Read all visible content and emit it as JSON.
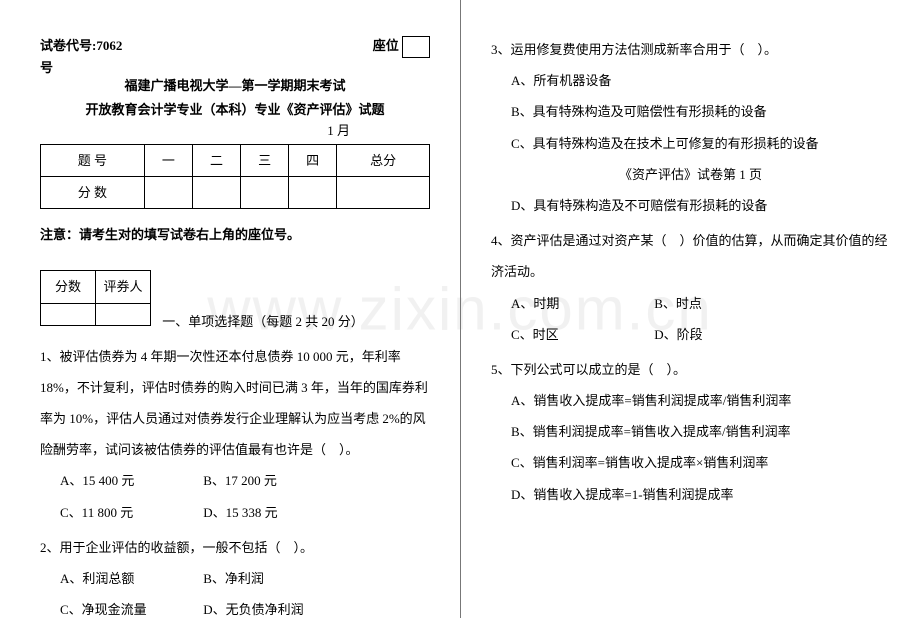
{
  "watermark": "www.zixin.com.cn",
  "left": {
    "exam_code_label": "试卷代号:7062",
    "seat_label": "座位",
    "hao": "号",
    "title1": "福建广播电视大学—第一学期期末考试",
    "title2": "开放教育会计学专业（本科）专业《资产评估》试题",
    "month": "1 月",
    "score_headers": [
      "题 号",
      "一",
      "二",
      "三",
      "四",
      "总分"
    ],
    "score_row_label": "分 数",
    "note": "注意：请考生对的填写试卷右上角的座位号。",
    "marker": [
      "分数",
      "评券人"
    ],
    "section1": "一、单项选择题（每题 2 共 20 分）",
    "q1": "1、被评估债券为 4 年期一次性还本付息债券 10 000 元，年利率18%，不计复利，评估时债券的购入时间已满 3 年，当年的国库券利率为 10%，评估人员通过对债券发行企业理解认为应当考虑 2%的风险酬劳率，试问该被估债券的评估值最有也许是（　）。",
    "q1_opts": [
      "A、15 400 元",
      "B、17 200 元",
      "C、11 800 元",
      "D、15 338 元"
    ],
    "q2": "2、用于企业评估的收益额，一般不包括（　）。",
    "q2_opts": [
      "A、利润总额",
      "B、净利润",
      "C、净现金流量",
      "D、无负债净利润"
    ]
  },
  "right": {
    "q3": "3、运用修复费使用方法估测成新率合用于（　）。",
    "q3_opts": [
      "A、所有机器设备",
      "B、具有特殊构造及可赔偿性有形损耗的设备",
      "C、具有特殊构造及在技术上可修复的有形损耗的设备",
      "D、具有特殊构造及不可赔偿有形损耗的设备"
    ],
    "page_num": "《资产评估》试卷第 1 页",
    "q4": "4、资产评估是通过对资产某（　）价值的估算，从而确定其价值的经济活动。",
    "q4_opts": [
      "A、时期",
      "B、时点",
      "C、时区",
      "D、阶段"
    ],
    "q5": "5、下列公式可以成立的是（　）。",
    "q5_opts": [
      "A、销售收入提成率=销售利润提成率/销售利润率",
      "B、销售利润提成率=销售收入提成率/销售利润率",
      "C、销售利润率=销售收入提成率×销售利润率",
      "D、销售收入提成率=1-销售利润提成率"
    ]
  }
}
